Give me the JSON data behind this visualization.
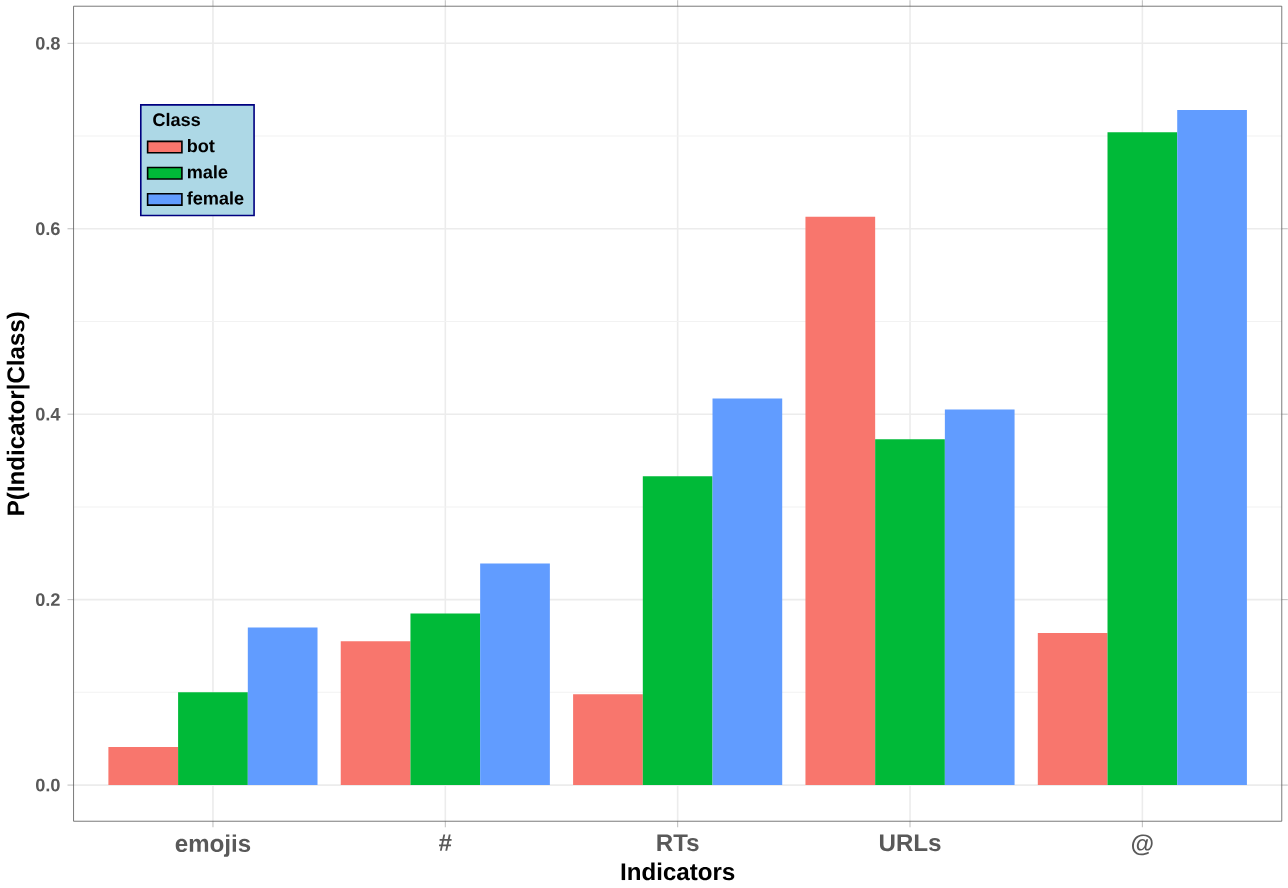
{
  "chart_data": {
    "type": "bar",
    "xlabel": "Indicators",
    "ylabel": "P(Indicator|Class)",
    "legend_title": "Class",
    "categories": [
      "emojis",
      "#",
      "RTs",
      "URLs",
      "@"
    ],
    "series": [
      {
        "name": "bot",
        "color": "#f8766d",
        "values": [
          0.041,
          0.155,
          0.098,
          0.613,
          0.164
        ]
      },
      {
        "name": "male",
        "color": "#00ba38",
        "values": [
          0.1,
          0.185,
          0.333,
          0.373,
          0.704
        ]
      },
      {
        "name": "female",
        "color": "#619cff",
        "values": [
          0.17,
          0.239,
          0.417,
          0.405,
          0.728
        ]
      }
    ],
    "ylim": [
      -0.039,
      0.84
    ],
    "yticks": [
      {
        "value": 0,
        "label": "0.0"
      },
      0.2,
      0.4,
      0.6,
      0.8
    ],
    "grid": true,
    "legend": "top left"
  }
}
